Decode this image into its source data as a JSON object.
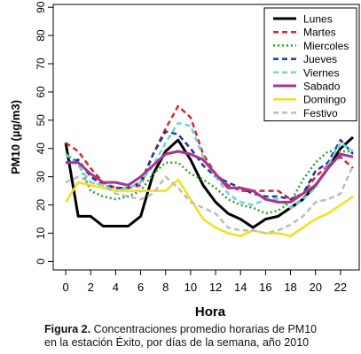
{
  "chart_data": {
    "type": "line",
    "title": "",
    "xlabel": "Hora",
    "ylabel": "PM10 (µg/m3)",
    "xlim": [
      -1,
      23.5
    ],
    "ylim": [
      -3,
      91
    ],
    "x_ticks": [
      0,
      2,
      4,
      6,
      8,
      10,
      12,
      14,
      16,
      18,
      20,
      22
    ],
    "y_ticks": [
      0,
      10,
      20,
      30,
      40,
      50,
      60,
      70,
      80,
      90
    ],
    "legend_position": "top-right",
    "x": [
      0,
      1,
      2,
      3,
      4,
      5,
      6,
      7,
      8,
      9,
      10,
      11,
      12,
      13,
      14,
      15,
      16,
      17,
      18,
      19,
      20,
      21,
      22,
      23
    ],
    "series": [
      {
        "name": "Lunes",
        "color": "#000000",
        "dash": "solid",
        "width": 3,
        "values": [
          42,
          16,
          16,
          12.5,
          12.5,
          12.5,
          16,
          31,
          39,
          43,
          36,
          27,
          21,
          17,
          15,
          12,
          15,
          16,
          19,
          22,
          27,
          33,
          40,
          44
        ]
      },
      {
        "name": "Martes",
        "color": "#d62728",
        "dash": "dashed",
        "width": 2.5,
        "values": [
          42,
          39,
          33,
          28,
          26,
          26,
          27,
          38,
          47,
          55,
          51,
          38,
          31,
          27,
          25,
          25,
          25,
          25,
          22,
          24,
          30,
          34,
          37,
          33
        ]
      },
      {
        "name": "Miercoles",
        "color": "#2ca02c",
        "dash": "dotted",
        "width": 2.5,
        "values": [
          38,
          35,
          25,
          23,
          22,
          23,
          25,
          31,
          35,
          35,
          31,
          29,
          26,
          22,
          20,
          19,
          17,
          18,
          21,
          29,
          35,
          39,
          39,
          39
        ]
      },
      {
        "name": "Jueves",
        "color": "#1f3a93",
        "dash": "dashed",
        "width": 2.5,
        "values": [
          35,
          36,
          30,
          27,
          26,
          26,
          28,
          38,
          46,
          45,
          40,
          34,
          30,
          28,
          26,
          24,
          23,
          23,
          22,
          24,
          32,
          35,
          43,
          38
        ]
      },
      {
        "name": "Viernes",
        "color": "#6fd3d3",
        "dash": "dashed",
        "width": 2.5,
        "values": [
          38,
          34,
          28,
          27,
          25,
          26,
          28,
          34,
          42,
          49,
          48,
          37,
          30,
          24,
          21,
          20,
          22,
          22,
          19,
          22,
          26,
          34,
          42,
          39
        ]
      },
      {
        "name": "Sabado",
        "color": "#a8358f",
        "dash": "solid",
        "width": 3,
        "values": [
          35,
          35,
          31,
          28,
          28,
          27,
          30,
          34,
          38,
          39,
          38,
          36,
          31,
          26,
          26,
          25,
          22,
          21,
          21,
          24,
          27,
          33,
          38,
          37
        ]
      },
      {
        "name": "Domingo",
        "color": "#f2e01a",
        "dash": "solid",
        "width": 2.5,
        "values": [
          21,
          28,
          27,
          26,
          25,
          25,
          25,
          25,
          25,
          29,
          22,
          15,
          12,
          10,
          9,
          11,
          10,
          10,
          9,
          12,
          15,
          17,
          20,
          23
        ]
      },
      {
        "name": "Festivo",
        "color": "#bcbcbc",
        "dash": "dashed",
        "width": 2.5,
        "values": [
          28,
          30,
          28,
          27,
          24,
          23,
          22,
          24,
          30,
          26,
          21,
          19,
          17,
          12,
          11,
          11,
          10,
          11,
          13,
          16,
          21,
          22,
          24,
          34
        ]
      }
    ]
  },
  "caption": {
    "bold": "Figura 2.",
    "line1": " Concentraciones promedio horarias de PM10",
    "line2": "en la estación Éxito, por días de la semana, año 2010"
  }
}
